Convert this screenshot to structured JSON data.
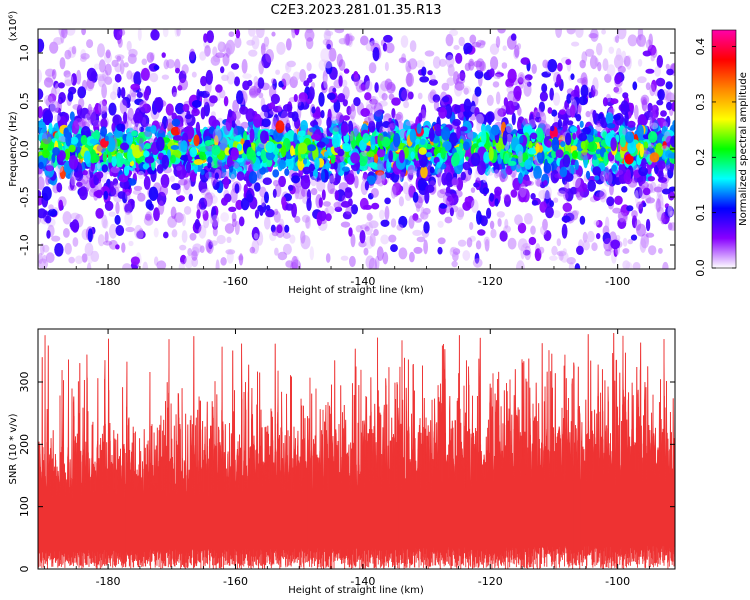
{
  "title": "C2E3.2023.281.01.35.R13",
  "chart_data": [
    {
      "type": "heatmap",
      "xlabel": "Height of straight line (km)",
      "ylabel": "Frequency (Hz)",
      "y_multiplier_label": "(x10⁶)",
      "xlim": [
        -191,
        -91
      ],
      "ylim": [
        -1.25,
        1.25
      ],
      "xticks": [
        -180,
        -160,
        -140,
        -120,
        -100
      ],
      "yticks": [
        -1.0,
        -0.5,
        0.0,
        0.5,
        1.0
      ],
      "ytick_labels": [
        "-1.0",
        "-0.5",
        "0.0",
        "0.5",
        "1.0"
      ],
      "band_center_hz": 0.0,
      "band_halfwidth_hz": 0.15,
      "colorbar": {
        "label": "Normalized spectral amplitude",
        "range": [
          0.0,
          0.43
        ],
        "ticks": [
          0.0,
          0.1,
          0.2,
          0.3,
          0.4
        ],
        "tick_labels": [
          "0.0",
          "0.1",
          "0.2",
          "0.3",
          "0.4"
        ],
        "colors": [
          "#ffffff",
          "#8800ff",
          "#0000ff",
          "#00ffff",
          "#00ff00",
          "#ffff00",
          "#ff8800",
          "#ff0000",
          "#ff00aa"
        ]
      }
    },
    {
      "type": "line",
      "xlabel": "Height of straight line (km)",
      "ylabel": "SNR (10 * v/v)",
      "xlim": [
        -191,
        -91
      ],
      "ylim": [
        0,
        385
      ],
      "xticks": [
        -180,
        -160,
        -140,
        -120,
        -100
      ],
      "yticks": [
        0,
        100,
        200,
        300
      ],
      "color": "#ee3333",
      "baseline_mean": 110,
      "typical_min": 30,
      "typical_max": 260,
      "peak_max": 385
    }
  ]
}
